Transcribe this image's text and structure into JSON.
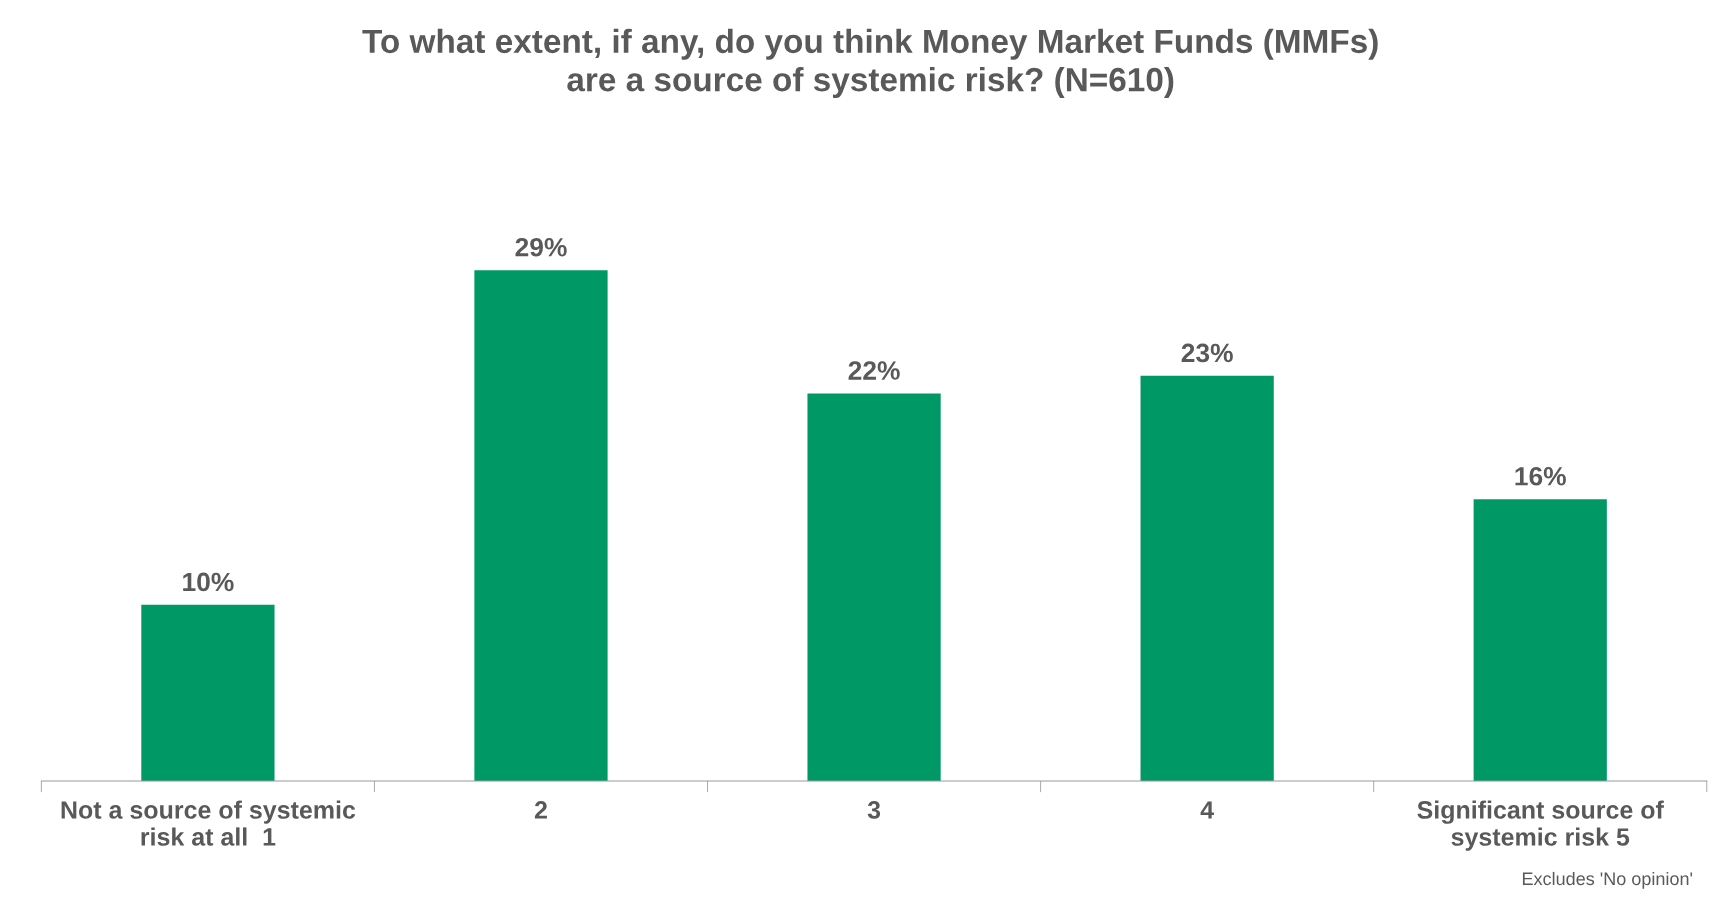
{
  "chart_data": {
    "type": "bar",
    "title": "To what extent, if any, do you think Money Market Funds (MMFs)\nare a source of systemic risk? (N=610)",
    "categories": [
      "Not a source of systemic\nrisk at all  1",
      "2",
      "3",
      "4",
      "Significant source of\nsystemic risk 5"
    ],
    "values": [
      10,
      29,
      22,
      23,
      16
    ],
    "value_labels": [
      "10%",
      "29%",
      "22%",
      "23%",
      "16%"
    ],
    "color": "#009966",
    "grid": false,
    "legend": false,
    "annotations": [
      "Excludes 'No opinion'"
    ]
  }
}
